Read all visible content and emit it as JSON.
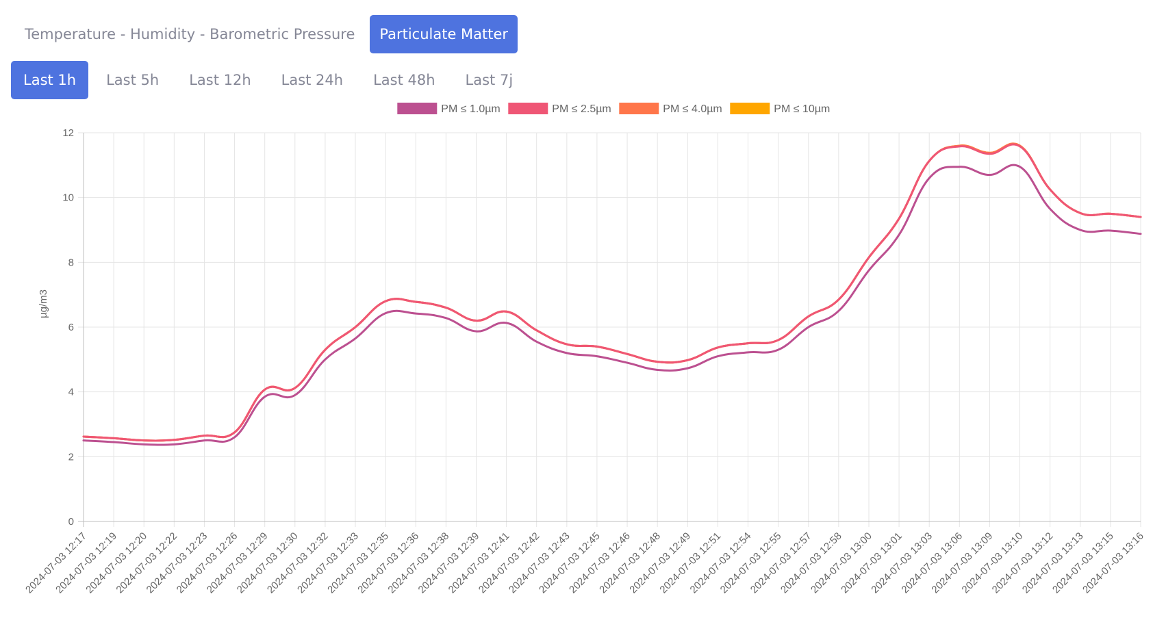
{
  "tabs": {
    "main": [
      {
        "label": "Temperature - Humidity - Barometric Pressure",
        "active": false
      },
      {
        "label": "Particulate Matter",
        "active": true
      }
    ],
    "range": [
      {
        "label": "Last 1h",
        "active": true
      },
      {
        "label": "Last 5h",
        "active": false
      },
      {
        "label": "Last 12h",
        "active": false
      },
      {
        "label": "Last 24h",
        "active": false
      },
      {
        "label": "Last 48h",
        "active": false
      },
      {
        "label": "Last 7j",
        "active": false
      }
    ]
  },
  "colors": {
    "accent": "#4e73df",
    "inactive_text": "#858796"
  },
  "chart_data": {
    "type": "line",
    "ylabel": "µg/m3",
    "ylim": [
      0,
      12
    ],
    "yticks": [
      0,
      2,
      4,
      6,
      8,
      10,
      12
    ],
    "grid": true,
    "legend_position": "top",
    "x": [
      "2024-07-03 12:17",
      "2024-07-03 12:19",
      "2024-07-03 12:20",
      "2024-07-03 12:22",
      "2024-07-03 12:23",
      "2024-07-03 12:26",
      "2024-07-03 12:29",
      "2024-07-03 12:30",
      "2024-07-03 12:32",
      "2024-07-03 12:33",
      "2024-07-03 12:35",
      "2024-07-03 12:36",
      "2024-07-03 12:38",
      "2024-07-03 12:39",
      "2024-07-03 12:41",
      "2024-07-03 12:42",
      "2024-07-03 12:43",
      "2024-07-03 12:45",
      "2024-07-03 12:46",
      "2024-07-03 12:48",
      "2024-07-03 12:49",
      "2024-07-03 12:51",
      "2024-07-03 12:54",
      "2024-07-03 12:55",
      "2024-07-03 12:57",
      "2024-07-03 12:58",
      "2024-07-03 13:00",
      "2024-07-03 13:01",
      "2024-07-03 13:03",
      "2024-07-03 13:06",
      "2024-07-03 13:09",
      "2024-07-03 13:10",
      "2024-07-03 13:12",
      "2024-07-03 13:13",
      "2024-07-03 13:15",
      "2024-07-03 13:16"
    ],
    "series": [
      {
        "name": "PM ≤ 1.0µm",
        "color": "#bc5090",
        "values": [
          2.5,
          2.45,
          2.38,
          2.38,
          2.5,
          2.6,
          3.85,
          3.9,
          5.0,
          5.65,
          6.43,
          6.42,
          6.28,
          5.87,
          6.13,
          5.55,
          5.2,
          5.1,
          4.9,
          4.68,
          4.73,
          5.1,
          5.22,
          5.3,
          6.0,
          6.5,
          7.75,
          8.85,
          10.6,
          10.95,
          10.7,
          10.95,
          9.65,
          9.0,
          8.98,
          8.88
        ]
      },
      {
        "name": "PM ≤ 2.5µm",
        "color": "#ef5675",
        "values": [
          2.62,
          2.57,
          2.5,
          2.52,
          2.65,
          2.75,
          4.07,
          4.12,
          5.3,
          6.0,
          6.8,
          6.78,
          6.6,
          6.2,
          6.48,
          5.9,
          5.47,
          5.4,
          5.17,
          4.93,
          4.98,
          5.37,
          5.5,
          5.6,
          6.33,
          6.85,
          8.15,
          9.35,
          11.13,
          11.58,
          11.35,
          11.58,
          10.25,
          9.52,
          9.5,
          9.4
        ]
      },
      {
        "name": "PM ≤ 4.0µm",
        "color": "#ff764a",
        "values": [
          2.62,
          2.57,
          2.5,
          2.52,
          2.65,
          2.75,
          4.07,
          4.12,
          5.3,
          6.0,
          6.8,
          6.78,
          6.6,
          6.2,
          6.48,
          5.9,
          5.47,
          5.4,
          5.17,
          4.93,
          4.98,
          5.37,
          5.5,
          5.6,
          6.33,
          6.85,
          8.15,
          9.35,
          11.13,
          11.6,
          11.38,
          11.6,
          10.25,
          9.52,
          9.5,
          9.4
        ]
      },
      {
        "name": "PM ≤ 10µm",
        "color": "#ffa600",
        "values": [
          2.62,
          2.57,
          2.5,
          2.52,
          2.65,
          2.75,
          4.07,
          4.12,
          5.3,
          6.0,
          6.8,
          6.78,
          6.6,
          6.2,
          6.48,
          5.9,
          5.47,
          5.4,
          5.17,
          4.93,
          4.98,
          5.37,
          5.5,
          5.6,
          6.33,
          6.85,
          8.15,
          9.35,
          11.13,
          11.6,
          11.38,
          11.6,
          10.25,
          9.52,
          9.5,
          9.4
        ]
      }
    ]
  }
}
